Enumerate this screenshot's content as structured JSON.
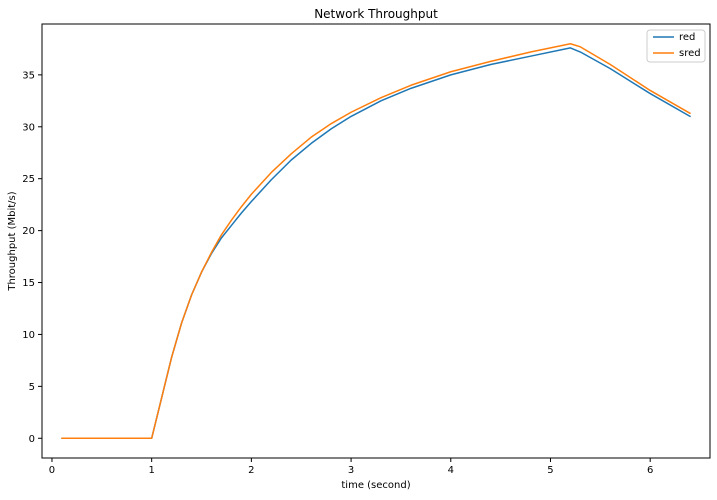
{
  "chart_data": {
    "type": "line",
    "title": "Network Throughput",
    "xlabel": "time (second)",
    "ylabel": "Throughput (Mbit/s)",
    "xlim": [
      -0.1,
      6.6
    ],
    "ylim": [
      -1.9,
      39.9
    ],
    "xticks": [
      0,
      1,
      2,
      3,
      4,
      5,
      6
    ],
    "yticks": [
      0,
      5,
      10,
      15,
      20,
      25,
      30,
      35
    ],
    "grid": false,
    "legend_position": "top-right",
    "series": [
      {
        "name": "red",
        "color": "#1f77b4",
        "x": [
          0.1,
          0.5,
          1.0,
          1.1,
          1.2,
          1.3,
          1.4,
          1.5,
          1.6,
          1.7,
          1.8,
          1.9,
          2.0,
          2.2,
          2.4,
          2.6,
          2.8,
          3.0,
          3.3,
          3.6,
          4.0,
          4.4,
          4.8,
          5.2,
          5.3,
          5.6,
          6.0,
          6.4
        ],
        "y": [
          0,
          0,
          0,
          3.9,
          7.8,
          11.1,
          13.8,
          16.0,
          17.8,
          19.3,
          20.5,
          21.7,
          22.8,
          24.9,
          26.8,
          28.4,
          29.8,
          31.0,
          32.5,
          33.7,
          35.0,
          36.0,
          36.8,
          37.6,
          37.2,
          35.6,
          33.2,
          31.0
        ]
      },
      {
        "name": "sred",
        "color": "#ff7f0e",
        "x": [
          0.1,
          0.5,
          1.0,
          1.1,
          1.2,
          1.3,
          1.4,
          1.5,
          1.6,
          1.7,
          1.8,
          1.9,
          2.0,
          2.2,
          2.4,
          2.6,
          2.8,
          3.0,
          3.3,
          3.6,
          4.0,
          4.4,
          4.8,
          5.2,
          5.3,
          5.6,
          6.0,
          6.4
        ],
        "y": [
          0,
          0,
          0,
          3.9,
          7.8,
          11.1,
          13.8,
          16.0,
          17.9,
          19.6,
          21.0,
          22.3,
          23.5,
          25.6,
          27.4,
          29.0,
          30.3,
          31.4,
          32.8,
          34.0,
          35.3,
          36.3,
          37.2,
          38.0,
          37.7,
          36.0,
          33.5,
          31.3
        ]
      }
    ]
  }
}
